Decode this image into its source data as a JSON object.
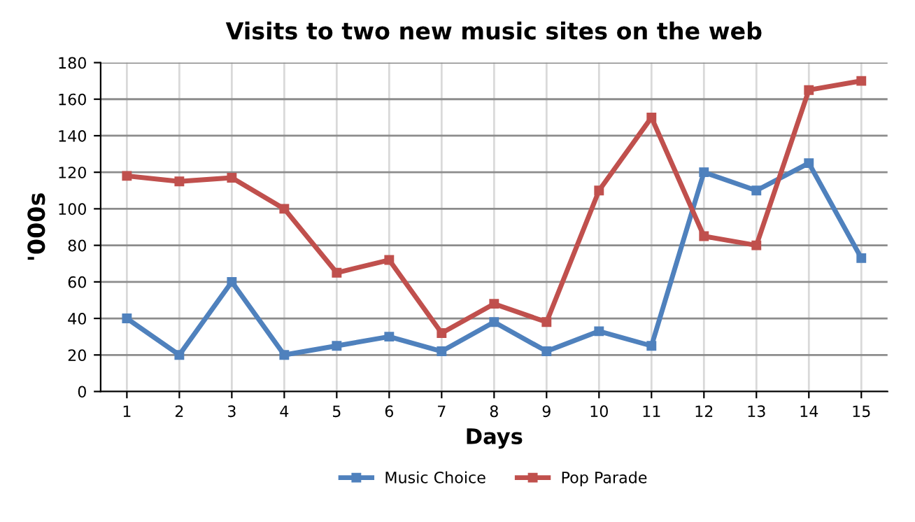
{
  "chart_data": {
    "type": "line",
    "title": "Visits to two new music sites on the web",
    "xlabel": "Days",
    "ylabel": "'000s",
    "categories": [
      "1",
      "2",
      "3",
      "4",
      "5",
      "6",
      "7",
      "8",
      "9",
      "10",
      "11",
      "12",
      "13",
      "14",
      "15"
    ],
    "series": [
      {
        "name": "Music Choice",
        "color": "#4f81bd",
        "values": [
          40,
          20,
          60,
          20,
          25,
          30,
          22,
          38,
          22,
          33,
          25,
          120,
          110,
          125,
          73
        ]
      },
      {
        "name": "Pop Parade",
        "color": "#c0504d",
        "values": [
          118,
          115,
          117,
          100,
          65,
          72,
          32,
          48,
          38,
          110,
          150,
          85,
          80,
          165,
          170
        ]
      }
    ],
    "ylim": [
      0,
      180
    ],
    "yticks": [
      0,
      20,
      40,
      60,
      80,
      100,
      120,
      140,
      160,
      180
    ],
    "grid": true,
    "legend": "bottom",
    "marker": "square",
    "line_style": "solid"
  }
}
